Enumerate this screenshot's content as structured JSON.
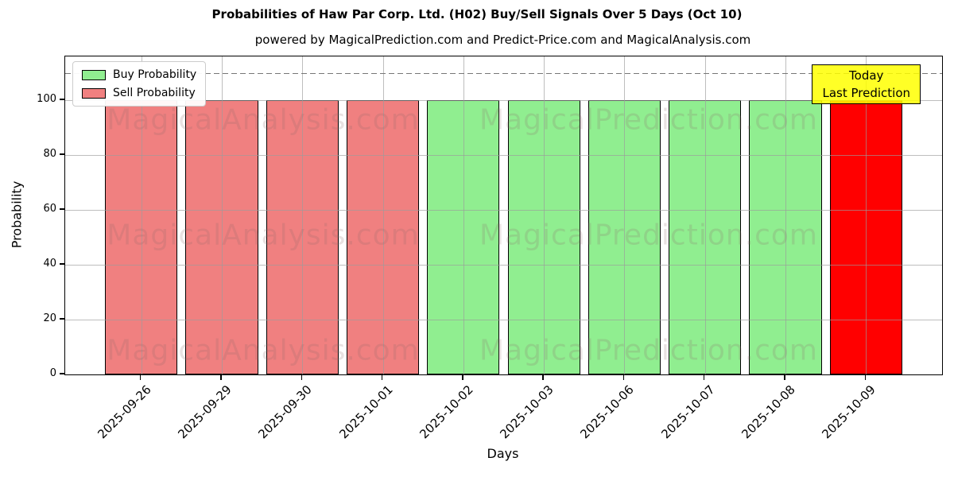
{
  "figure": {
    "title": "Probabilities of Haw Par Corp. Ltd. (H02) Buy/Sell Signals Over 5 Days (Oct 10)",
    "subtitle": "powered by MagicalPrediction.com and Predict-Price.com and MagicalAnalysis.com"
  },
  "chart_data": {
    "type": "bar",
    "title": "Probabilities of Haw Par Corp. Ltd. (H02) Buy/Sell Signals Over 5 Days (Oct 10)",
    "subtitle": "powered by MagicalPrediction.com and Predict-Price.com and MagicalAnalysis.com",
    "xlabel": "Days",
    "ylabel": "Probability",
    "ylim": [
      0,
      116
    ],
    "yticks": [
      0,
      20,
      40,
      60,
      80,
      100
    ],
    "grid": true,
    "categories": [
      "2025-09-26",
      "2025-09-29",
      "2025-09-30",
      "2025-10-01",
      "2025-10-02",
      "2025-10-03",
      "2025-10-06",
      "2025-10-07",
      "2025-10-08",
      "2025-10-09"
    ],
    "series": [
      {
        "name": "Buy Probability",
        "color": "#90ee90",
        "values": [
          0,
          0,
          0,
          0,
          100,
          100,
          100,
          100,
          100,
          0
        ]
      },
      {
        "name": "Sell Probability",
        "color": "#f08080",
        "values": [
          100,
          100,
          100,
          100,
          0,
          0,
          0,
          0,
          0,
          100
        ]
      }
    ],
    "bars": [
      {
        "category": "2025-09-26",
        "value": 100,
        "signal": "sell",
        "color": "#f08080"
      },
      {
        "category": "2025-09-29",
        "value": 100,
        "signal": "sell",
        "color": "#f08080"
      },
      {
        "category": "2025-09-30",
        "value": 100,
        "signal": "sell",
        "color": "#f08080"
      },
      {
        "category": "2025-10-01",
        "value": 100,
        "signal": "sell",
        "color": "#f08080"
      },
      {
        "category": "2025-10-02",
        "value": 100,
        "signal": "buy",
        "color": "#90ee90"
      },
      {
        "category": "2025-10-03",
        "value": 100,
        "signal": "buy",
        "color": "#90ee90"
      },
      {
        "category": "2025-10-06",
        "value": 100,
        "signal": "buy",
        "color": "#90ee90"
      },
      {
        "category": "2025-10-07",
        "value": 100,
        "signal": "buy",
        "color": "#90ee90"
      },
      {
        "category": "2025-10-08",
        "value": 100,
        "signal": "buy",
        "color": "#90ee90"
      },
      {
        "category": "2025-10-09",
        "value": 100,
        "signal": "sell-today",
        "color": "#ff0000"
      }
    ],
    "legend": {
      "position": "upper left",
      "entries": [
        {
          "label": "Buy Probability",
          "color": "#90ee90"
        },
        {
          "label": "Sell Probability",
          "color": "#f08080"
        }
      ]
    },
    "annotations": {
      "threshold_line": {
        "y": 110,
        "style": "dashed",
        "color": "#767676"
      },
      "today_box": {
        "lines": [
          "Today",
          "Last Prediction"
        ],
        "bg_color": "#ffff00",
        "border_color": "#000000"
      }
    },
    "watermarks": [
      "MagicalAnalysis.com",
      "MagicalPrediction.com"
    ]
  }
}
